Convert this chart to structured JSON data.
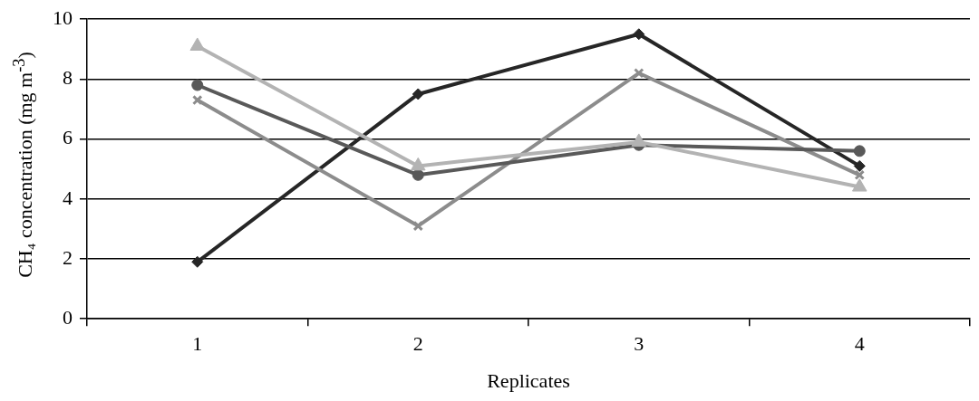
{
  "chart_data": {
    "type": "line",
    "xlabel": "Replicates",
    "ylabel": "CH₄ concentration (mg m$^{-3}$)",
    "categories": [
      "1",
      "2",
      "3",
      "4"
    ],
    "ylim": [
      0,
      10
    ],
    "yticks": [
      0,
      2,
      4,
      6,
      8,
      10
    ],
    "grid": "y",
    "legend": false,
    "line_style": "solid",
    "series": [
      {
        "color": "#595959",
        "marker": "circle",
        "values": [
          7.8,
          4.8,
          5.8,
          5.6
        ]
      },
      {
        "color": "#b3b3b3",
        "marker": "triangle",
        "values": [
          9.1,
          5.1,
          5.9,
          4.4
        ]
      },
      {
        "color": "#8c8c8c",
        "marker": "cross",
        "values": [
          7.3,
          3.1,
          8.2,
          4.8
        ]
      },
      {
        "color": "#262626",
        "marker": "diamond",
        "values": [
          1.9,
          7.5,
          9.5,
          5.1
        ]
      }
    ]
  }
}
